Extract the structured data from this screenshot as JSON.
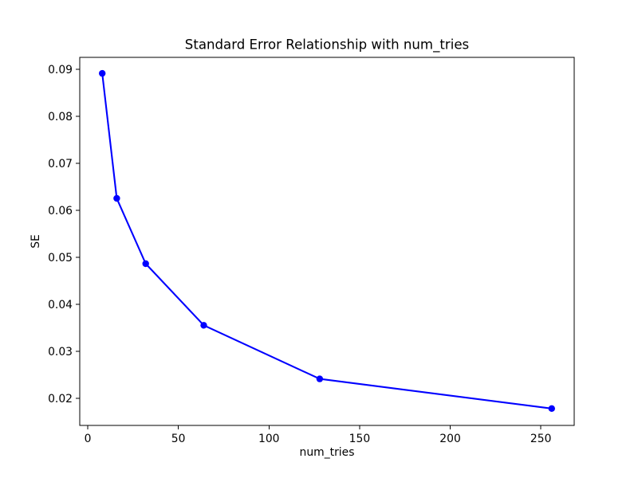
{
  "figure": {
    "title": "Standard Error Relationship with num_tries",
    "xlabel": "num_tries",
    "ylabel": "SE"
  },
  "chart_data": {
    "type": "line",
    "title": "Standard Error Relationship with num_tries",
    "xlabel": "num_tries",
    "ylabel": "SE",
    "x": [
      8,
      16,
      32,
      64,
      128,
      256
    ],
    "y": [
      0.0891,
      0.0625,
      0.0486,
      0.0355,
      0.0241,
      0.0178
    ],
    "series": [
      {
        "name": "SE",
        "x": [
          8,
          16,
          32,
          64,
          128,
          256
        ],
        "y": [
          0.0891,
          0.0625,
          0.0486,
          0.0355,
          0.0241,
          0.0178
        ]
      }
    ],
    "xlim": [
      -4.4,
      268.4
    ],
    "ylim": [
      0.0142,
      0.0925
    ],
    "xticks": [
      0,
      50,
      100,
      150,
      200,
      250
    ],
    "xtick_labels": [
      "0",
      "50",
      "100",
      "150",
      "200",
      "250"
    ],
    "yticks": [
      0.02,
      0.03,
      0.04,
      0.05,
      0.06,
      0.07,
      0.08,
      0.09
    ],
    "ytick_labels": [
      "0.02",
      "0.03",
      "0.04",
      "0.05",
      "0.06",
      "0.07",
      "0.08",
      "0.09"
    ],
    "grid": false,
    "legend_position": "none",
    "line_color": "#0000ff",
    "marker": "circle",
    "marker_color": "#0000ff",
    "frame_color": "#000000",
    "background_color": "#ffffff"
  }
}
